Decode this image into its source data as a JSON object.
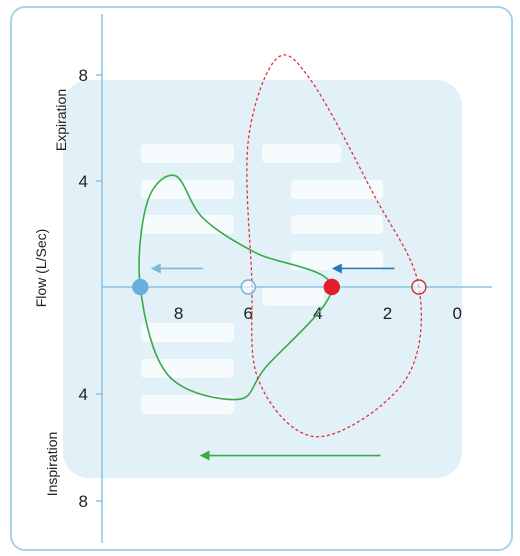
{
  "chart_data": {
    "type": "line",
    "title": "",
    "xlabel": "",
    "ylabel": "Flow (L/Sec)",
    "y_region_labels": {
      "top": "Expiration",
      "bottom": "Inspiration"
    },
    "x_ticks": [
      "8",
      "6",
      "4",
      "2",
      "0"
    ],
    "y_ticks_top": [
      "8",
      "4"
    ],
    "y_ticks_bottom": [
      "4",
      "8"
    ],
    "x_reversed": true,
    "xlim": [
      10.2,
      -1.0
    ],
    "ylim": [
      -9.2,
      10.5
    ],
    "grid": false,
    "series": [
      {
        "style": "solid",
        "color": "#3aaa4a",
        "points": [
          [
            9.1,
            0
          ],
          [
            8.9,
            3.2
          ],
          [
            8.1,
            4.2
          ],
          [
            7.3,
            2.6
          ],
          [
            5.8,
            1.3
          ],
          [
            3.6,
            0
          ],
          [
            5.5,
            -3.0
          ],
          [
            6.3,
            -4.2
          ],
          [
            8.3,
            -3.3
          ],
          [
            9.1,
            0
          ]
        ]
      },
      {
        "style": "dashed",
        "color": "#e03030",
        "points": [
          [
            1.1,
            0
          ],
          [
            2.4,
            3.5
          ],
          [
            4.2,
            7.8
          ],
          [
            5.2,
            8.6
          ],
          [
            6.0,
            5.5
          ],
          [
            5.9,
            0.4
          ],
          [
            5.7,
            -3.5
          ],
          [
            4.0,
            -5.6
          ],
          [
            1.5,
            -3.5
          ],
          [
            1.1,
            0
          ]
        ]
      }
    ],
    "markers": [
      {
        "x": 9.1,
        "y": 0,
        "fill": "#6aaedc",
        "stroke": "#6aaedc"
      },
      {
        "x": 6.0,
        "y": 0,
        "fill": "none",
        "stroke": "#6aaedc"
      },
      {
        "x": 3.6,
        "y": 0,
        "fill": "#e01e2a",
        "stroke": "#e01e2a"
      },
      {
        "x": 1.1,
        "y": 0,
        "fill": "none",
        "stroke": "#c8303a"
      }
    ],
    "arrows": [
      {
        "from": [
          7.3,
          0.7
        ],
        "to": [
          8.8,
          0.7
        ],
        "color": "#7ab8dc"
      },
      {
        "from": [
          1.8,
          0.7
        ],
        "to": [
          3.6,
          0.7
        ],
        "color": "#2a78b8"
      },
      {
        "from": [
          2.2,
          -6.3
        ],
        "to": [
          7.4,
          -6.3
        ],
        "color": "#3aaa4a"
      }
    ]
  },
  "colors": {
    "frame_border": "#a9d2ea",
    "frame_fill": "#eff8fc",
    "panel_fill": "#e2f1f8",
    "axis": "#8ac4e4",
    "placeholder_bar": "#f6fbfd"
  }
}
